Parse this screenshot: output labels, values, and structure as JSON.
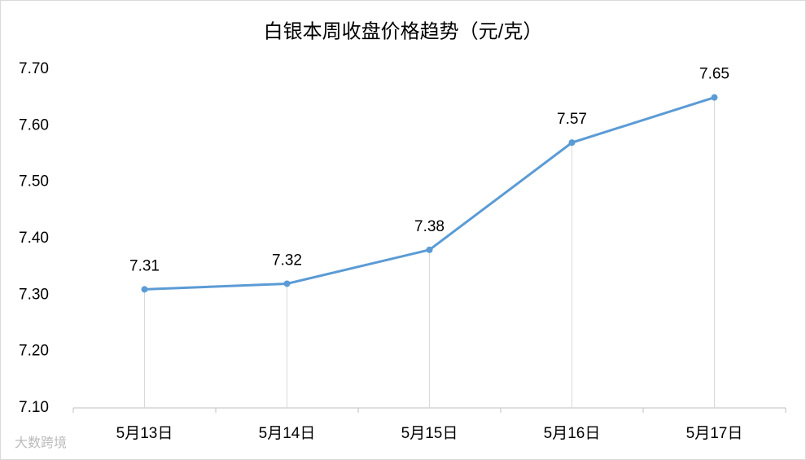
{
  "chart_data": {
    "type": "line",
    "title": "白银本周收盘价格趋势（元/克）",
    "categories": [
      "5月13日",
      "5月14日",
      "5月15日",
      "5月16日",
      "5月17日"
    ],
    "values": [
      7.31,
      7.32,
      7.38,
      7.57,
      7.65
    ],
    "color": "#5b9bd5",
    "ylim": [
      7.1,
      7.7
    ],
    "yticks": [
      {
        "value": 7.1,
        "label": "7.10"
      },
      {
        "value": 7.2,
        "label": "7.20"
      },
      {
        "value": 7.3,
        "label": "7.30"
      },
      {
        "value": 7.4,
        "label": "7.40"
      },
      {
        "value": 7.5,
        "label": "7.50"
      },
      {
        "value": 7.6,
        "label": "7.60"
      },
      {
        "value": 7.7,
        "label": "7.70"
      }
    ],
    "grid": false,
    "drop_lines": true,
    "watermark": "大数跨境"
  }
}
